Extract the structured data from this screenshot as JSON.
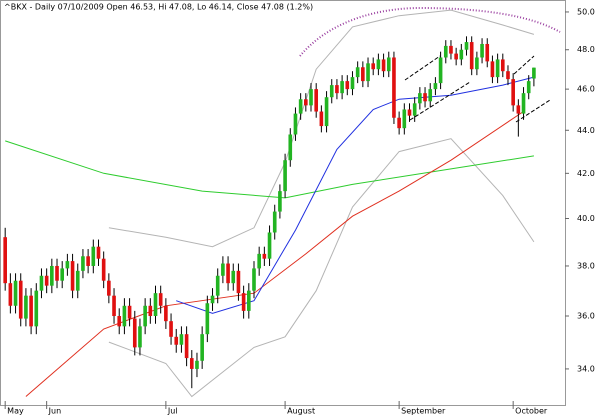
{
  "chart_data": {
    "type": "candlestick",
    "title": "^BKX - Daily 07/10/2009 Open 46.53, Hi 47.08, Lo 46.14, Close 47.08 (1.2%)",
    "up_color": "#22b422",
    "down_color": "#e01010",
    "log_scale": true,
    "xlim": [
      -1,
      108
    ],
    "ylim": [
      32.7,
      50.65
    ],
    "yticks": [
      {
        "value": 34,
        "label": "34.0"
      },
      {
        "value": 36,
        "label": "36.0"
      },
      {
        "value": 38,
        "label": "38.0"
      },
      {
        "value": 40,
        "label": "40.0"
      },
      {
        "value": 42,
        "label": "42.0"
      },
      {
        "value": 44,
        "label": "44.0"
      },
      {
        "value": 46,
        "label": "46.0"
      },
      {
        "value": 48,
        "label": "48.0"
      },
      {
        "value": 50,
        "label": "50.0"
      }
    ],
    "xticks": [
      {
        "value": 0,
        "label": "May"
      },
      {
        "value": 8,
        "label": "Jun"
      },
      {
        "value": 31,
        "label": "Jul"
      },
      {
        "value": 54,
        "label": "August"
      },
      {
        "value": 76,
        "label": "September"
      },
      {
        "value": 98,
        "label": "October"
      }
    ],
    "open": [
      39.2,
      37.3,
      36.4,
      37.4,
      35.9,
      36.8,
      35.6,
      37.0,
      37.6,
      37.2,
      38.0,
      37.4,
      37.9,
      38.2,
      37.0,
      37.8,
      38.4,
      38.0,
      38.8,
      38.3,
      37.4,
      36.8,
      36.0,
      35.6,
      36.4,
      35.9,
      34.8,
      35.6,
      36.4,
      36.0,
      36.9,
      36.4,
      35.8,
      35.2,
      34.9,
      35.3,
      34.4,
      34.0,
      34.3,
      35.3,
      36.5,
      36.8,
      37.6,
      38.1,
      37.3,
      37.8,
      36.9,
      36.2,
      37.0,
      37.9,
      38.5,
      38.3,
      39.4,
      40.3,
      41.2,
      42.6,
      43.8,
      44.8,
      45.5,
      45.2,
      46.0,
      44.9,
      44.2,
      45.6,
      46.2,
      45.8,
      46.4,
      46.0,
      46.6,
      47.1,
      46.4,
      47.3,
      47.0,
      47.5,
      46.9,
      47.6,
      44.6,
      44.1,
      45.0,
      44.7,
      45.3,
      45.8,
      45.4,
      46.0,
      46.3,
      47.6,
      48.2,
      47.8,
      47.5,
      48.0,
      48.4,
      47.0,
      47.6,
      48.3,
      47.4,
      46.6,
      47.5,
      46.9,
      46.5,
      45.2,
      44.8,
      45.8,
      46.53
    ],
    "high": [
      39.6,
      37.7,
      37.7,
      37.7,
      37.1,
      37.1,
      37.3,
      37.9,
      37.9,
      38.3,
      38.3,
      38.2,
      38.5,
      38.5,
      38.1,
      38.7,
      38.7,
      39.1,
      39.1,
      38.6,
      37.7,
      37.1,
      36.3,
      36.7,
      36.7,
      36.2,
      35.9,
      36.7,
      36.7,
      37.2,
      37.2,
      36.7,
      36.1,
      35.5,
      35.6,
      35.6,
      34.7,
      34.6,
      35.6,
      36.8,
      37.1,
      37.9,
      38.4,
      38.4,
      38.1,
      38.1,
      37.2,
      37.3,
      38.2,
      38.8,
      38.8,
      39.7,
      40.6,
      41.5,
      42.9,
      44.1,
      45.1,
      45.8,
      45.8,
      46.3,
      46.3,
      45.2,
      45.9,
      46.5,
      46.5,
      46.7,
      46.7,
      46.9,
      47.4,
      47.4,
      47.6,
      47.6,
      47.8,
      47.8,
      47.9,
      47.9,
      44.9,
      45.3,
      45.3,
      45.6,
      46.1,
      46.1,
      46.3,
      46.6,
      47.9,
      48.5,
      48.5,
      48.1,
      48.3,
      48.7,
      48.7,
      47.9,
      48.6,
      48.6,
      47.7,
      47.8,
      47.8,
      47.2,
      46.8,
      45.5,
      46.1,
      46.7,
      47.08
    ],
    "low": [
      37.0,
      36.1,
      36.1,
      35.6,
      35.6,
      35.3,
      35.3,
      36.7,
      36.9,
      36.9,
      37.1,
      37.1,
      37.6,
      36.7,
      36.7,
      37.5,
      37.7,
      37.7,
      38.0,
      37.1,
      36.5,
      35.7,
      35.3,
      35.3,
      35.6,
      34.5,
      34.5,
      35.3,
      35.7,
      35.7,
      36.1,
      35.5,
      34.9,
      34.6,
      34.6,
      34.1,
      33.3,
      33.7,
      34.0,
      35.0,
      36.2,
      36.5,
      37.3,
      37.0,
      37.0,
      36.6,
      35.9,
      35.9,
      36.7,
      37.6,
      38.0,
      38.0,
      39.1,
      40.0,
      40.9,
      42.3,
      43.5,
      44.5,
      44.9,
      44.9,
      44.6,
      43.9,
      43.9,
      45.3,
      45.5,
      45.5,
      45.7,
      45.7,
      46.3,
      46.1,
      46.1,
      46.7,
      46.7,
      46.6,
      46.6,
      44.3,
      43.8,
      43.8,
      44.4,
      44.4,
      45.0,
      45.1,
      45.1,
      45.7,
      46.0,
      47.3,
      47.5,
      47.2,
      47.2,
      47.7,
      46.7,
      46.7,
      47.3,
      47.1,
      46.3,
      46.3,
      46.6,
      46.2,
      44.9,
      43.7,
      44.5,
      45.5,
      46.14
    ],
    "close": [
      37.3,
      36.4,
      37.4,
      35.9,
      36.8,
      35.6,
      37.0,
      37.6,
      37.2,
      38.0,
      37.4,
      37.9,
      38.2,
      37.0,
      37.8,
      38.4,
      38.0,
      38.8,
      38.3,
      37.4,
      36.8,
      36.0,
      35.6,
      36.4,
      35.9,
      34.8,
      35.6,
      36.4,
      36.0,
      36.9,
      36.4,
      35.8,
      35.2,
      34.9,
      35.3,
      34.4,
      34.0,
      34.3,
      35.3,
      36.5,
      36.8,
      37.6,
      38.1,
      37.3,
      37.8,
      36.9,
      36.2,
      37.0,
      37.9,
      38.5,
      38.3,
      39.4,
      40.3,
      41.2,
      42.6,
      43.8,
      44.8,
      45.5,
      45.2,
      46.0,
      44.9,
      44.2,
      45.6,
      46.2,
      45.8,
      46.4,
      46.0,
      46.6,
      47.1,
      46.4,
      47.3,
      47.0,
      47.5,
      46.9,
      47.6,
      44.6,
      44.1,
      45.0,
      44.7,
      45.3,
      45.8,
      45.4,
      46.0,
      46.3,
      47.6,
      48.2,
      47.8,
      47.5,
      48.0,
      48.4,
      47.0,
      47.6,
      48.3,
      47.4,
      46.6,
      47.5,
      46.9,
      46.5,
      45.2,
      44.8,
      45.8,
      46.4,
      47.08
    ],
    "overlays": [
      {
        "color": "#b4b4b4",
        "x": [
          20,
          31,
          40,
          48,
          54,
          60,
          67,
          76,
          86,
          96,
          102
        ],
        "values": [
          39.6,
          39.2,
          38.8,
          39.6,
          42.5,
          47.0,
          49.2,
          49.8,
          50.1,
          49.3,
          48.8
        ]
      },
      {
        "color": "#b4b4b4",
        "x": [
          20,
          31,
          36,
          48,
          54,
          60,
          67,
          76,
          86,
          96,
          102
        ],
        "values": [
          35.0,
          34.2,
          33.0,
          34.8,
          35.2,
          37.0,
          40.5,
          43.0,
          43.6,
          41.0,
          39.0
        ]
      },
      {
        "color": "#2ecc2e",
        "x": [
          0,
          19,
          38,
          54,
          67,
          86,
          102
        ],
        "values": [
          43.5,
          42.0,
          41.2,
          40.9,
          41.5,
          42.2,
          42.8
        ]
      },
      {
        "color": "#e03020",
        "x": [
          4,
          19,
          31,
          48,
          58,
          67,
          76,
          86,
          100
        ],
        "values": [
          33.0,
          35.5,
          36.4,
          36.9,
          38.5,
          40.1,
          41.2,
          42.6,
          44.9
        ]
      },
      {
        "color": "#2030e0",
        "x": [
          33,
          40,
          48,
          56,
          64,
          71,
          76,
          86,
          96,
          102
        ],
        "values": [
          36.6,
          36.1,
          36.6,
          39.5,
          43.1,
          45.0,
          45.5,
          45.7,
          46.2,
          46.6
        ]
      }
    ]
  }
}
